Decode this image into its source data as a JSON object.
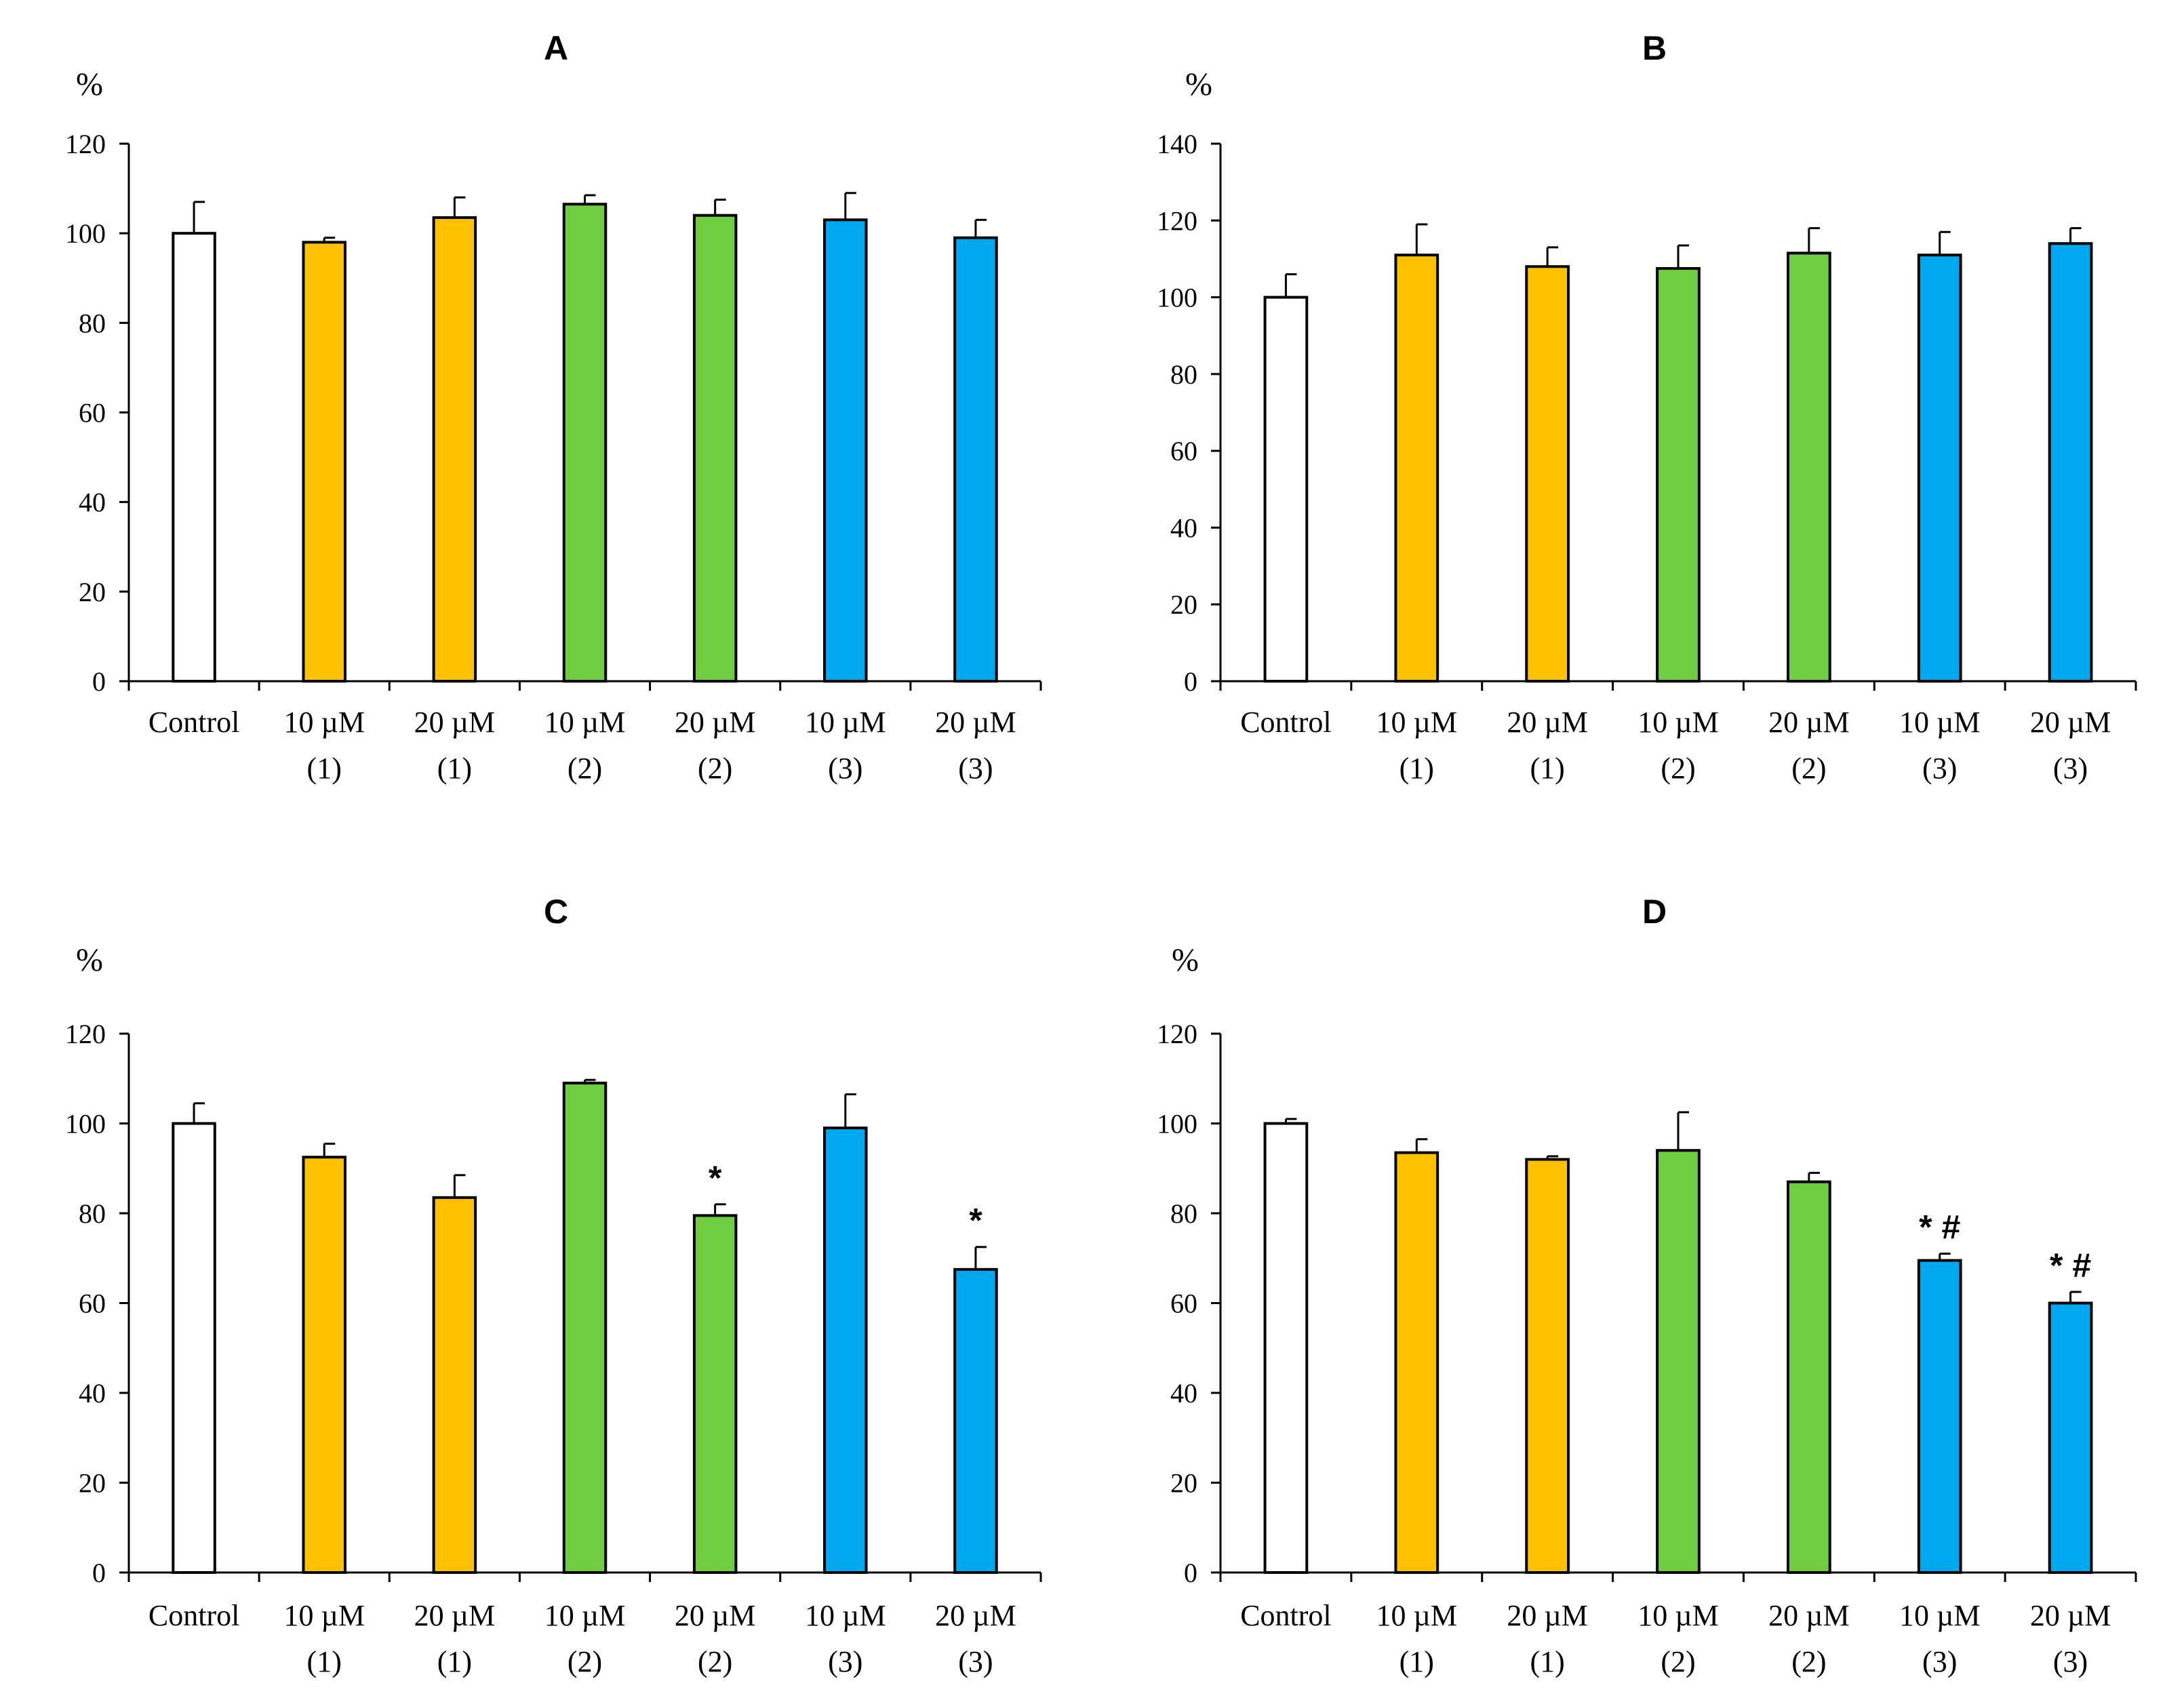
{
  "colors": {
    "control": "#ffffff",
    "compound1": "#ffc000",
    "compound2": "#70cc40",
    "compound3": "#00a8f0",
    "outline": "#000000"
  },
  "chart_data": [
    {
      "type": "bar",
      "title": "A",
      "ylabel": "%",
      "ylim": [
        0,
        120
      ],
      "yticks": [
        0,
        20,
        40,
        60,
        80,
        100,
        120
      ],
      "categories": [
        {
          "line1": "Control",
          "line2": "",
          "group": "control"
        },
        {
          "line1": "10 µM",
          "line2": "(1)",
          "group": "compound1"
        },
        {
          "line1": "20 µM",
          "line2": "(1)",
          "group": "compound1"
        },
        {
          "line1": "10 µM",
          "line2": "(2)",
          "group": "compound2"
        },
        {
          "line1": "20 µM",
          "line2": "(2)",
          "group": "compound2"
        },
        {
          "line1": "10 µM",
          "line2": "(3)",
          "group": "compound3"
        },
        {
          "line1": "20 µM",
          "line2": "(3)",
          "group": "compound3"
        }
      ],
      "values": [
        100,
        98,
        103.5,
        106.5,
        104,
        103,
        99
      ],
      "errors": [
        7,
        1,
        4.5,
        2,
        3.5,
        6,
        4
      ],
      "annotations": [
        "",
        "",
        "",
        "",
        "",
        "",
        ""
      ]
    },
    {
      "type": "bar",
      "title": "B",
      "ylabel": "%",
      "ylim": [
        0,
        140
      ],
      "yticks": [
        0,
        20,
        40,
        60,
        80,
        100,
        120,
        140
      ],
      "categories": [
        {
          "line1": "Control",
          "line2": "",
          "group": "control"
        },
        {
          "line1": "10 µM",
          "line2": "(1)",
          "group": "compound1"
        },
        {
          "line1": "20 µM",
          "line2": "(1)",
          "group": "compound1"
        },
        {
          "line1": "10 µM",
          "line2": "(2)",
          "group": "compound2"
        },
        {
          "line1": "20 µM",
          "line2": "(2)",
          "group": "compound2"
        },
        {
          "line1": "10 µM",
          "line2": "(3)",
          "group": "compound3"
        },
        {
          "line1": "20 µM",
          "line2": "(3)",
          "group": "compound3"
        }
      ],
      "values": [
        100,
        111,
        108,
        107.5,
        111.5,
        111,
        114
      ],
      "errors": [
        6,
        8,
        5,
        6,
        6.5,
        6,
        4
      ],
      "annotations": [
        "",
        "",
        "",
        "",
        "",
        "",
        ""
      ]
    },
    {
      "type": "bar",
      "title": "C",
      "ylabel": "%",
      "ylim": [
        0,
        120
      ],
      "yticks": [
        0,
        20,
        40,
        60,
        80,
        100,
        120
      ],
      "categories": [
        {
          "line1": "Control",
          "line2": "",
          "group": "control"
        },
        {
          "line1": "10 µM",
          "line2": "(1)",
          "group": "compound1"
        },
        {
          "line1": "20 µM",
          "line2": "(1)",
          "group": "compound1"
        },
        {
          "line1": "10 µM",
          "line2": "(2)",
          "group": "compound2"
        },
        {
          "line1": "20 µM",
          "line2": "(2)",
          "group": "compound2"
        },
        {
          "line1": "10 µM",
          "line2": "(3)",
          "group": "compound3"
        },
        {
          "line1": "20 µM",
          "line2": "(3)",
          "group": "compound3"
        }
      ],
      "values": [
        100,
        92.5,
        83.5,
        109,
        79.5,
        99,
        67.5
      ],
      "errors": [
        4.5,
        3,
        5,
        0.7,
        2.5,
        7.5,
        5
      ],
      "annotations": [
        "",
        "",
        "",
        "",
        "*",
        "",
        "*"
      ]
    },
    {
      "type": "bar",
      "title": "D",
      "ylabel": "%",
      "ylim": [
        0,
        120
      ],
      "yticks": [
        0,
        20,
        40,
        60,
        80,
        100,
        120
      ],
      "categories": [
        {
          "line1": "Control",
          "line2": "",
          "group": "control"
        },
        {
          "line1": "10 µM",
          "line2": "(1)",
          "group": "compound1"
        },
        {
          "line1": "20 µM",
          "line2": "(1)",
          "group": "compound1"
        },
        {
          "line1": "10 µM",
          "line2": "(2)",
          "group": "compound2"
        },
        {
          "line1": "20 µM",
          "line2": "(2)",
          "group": "compound2"
        },
        {
          "line1": "10 µM",
          "line2": "(3)",
          "group": "compound3"
        },
        {
          "line1": "20 µM",
          "line2": "(3)",
          "group": "compound3"
        }
      ],
      "values": [
        100,
        93.5,
        92,
        94,
        87,
        69.5,
        60
      ],
      "errors": [
        1,
        3,
        0.7,
        8.5,
        2,
        1.5,
        2.5
      ],
      "annotations": [
        "",
        "",
        "",
        "",
        "",
        "* #",
        "* #"
      ]
    }
  ]
}
